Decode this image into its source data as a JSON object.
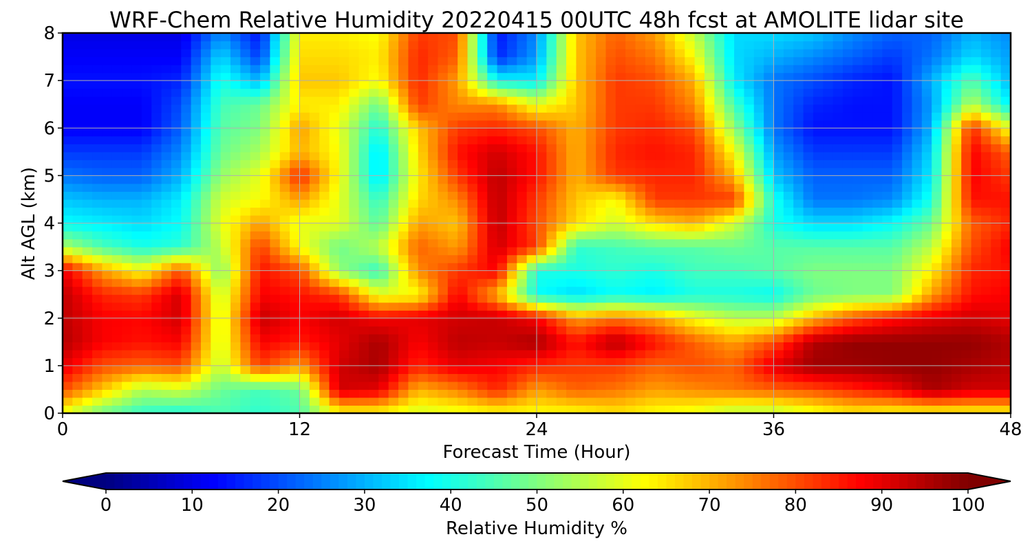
{
  "chart_data": {
    "type": "heatmap",
    "title": "WRF-Chem Relative Humidity 20220415 00UTC 48h fcst at AMOLITE lidar site",
    "xlabel": "Forecast Time (Hour)",
    "ylabel": "Alt AGL (km)",
    "xlim": [
      0,
      48
    ],
    "ylim": [
      0,
      8
    ],
    "x_ticks": [
      0,
      12,
      24,
      36,
      48
    ],
    "y_ticks": [
      0,
      1,
      2,
      3,
      4,
      5,
      6,
      7,
      8
    ],
    "grid": true,
    "colormap": "jet",
    "colorbar": {
      "label": "Relative Humidity %",
      "orientation": "horizontal",
      "placement": "bottom",
      "range": [
        0,
        100
      ],
      "ticks": [
        0,
        10,
        20,
        30,
        40,
        50,
        60,
        70,
        80,
        90,
        100
      ],
      "extend": "both"
    },
    "x": [
      0,
      2,
      4,
      6,
      8,
      10,
      12,
      14,
      16,
      18,
      20,
      22,
      24,
      26,
      28,
      30,
      32,
      34,
      36,
      38,
      40,
      42,
      44,
      46,
      48
    ],
    "y": [
      0,
      0.5,
      1,
      1.5,
      2,
      2.5,
      3,
      3.5,
      4,
      4.5,
      5,
      5.5,
      6,
      6.5,
      7,
      7.5,
      8
    ],
    "z": [
      [
        60,
        48,
        42,
        40,
        45,
        42,
        45,
        62,
        62,
        58,
        60,
        62,
        62,
        62,
        65,
        62,
        60,
        55,
        55,
        60,
        64,
        62,
        62,
        62,
        62
      ],
      [
        80,
        68,
        55,
        58,
        48,
        44,
        48,
        92,
        90,
        70,
        75,
        84,
        72,
        78,
        76,
        72,
        74,
        76,
        78,
        80,
        84,
        88,
        96,
        92,
        92
      ],
      [
        90,
        80,
        78,
        80,
        56,
        82,
        72,
        92,
        96,
        84,
        90,
        88,
        84,
        82,
        82,
        78,
        80,
        78,
        90,
        97,
        97,
        98,
        98,
        96,
        94
      ],
      [
        95,
        88,
        86,
        88,
        58,
        88,
        85,
        90,
        96,
        88,
        94,
        93,
        96,
        86,
        95,
        86,
        78,
        72,
        80,
        95,
        98,
        98,
        98,
        98,
        95
      ],
      [
        94,
        88,
        87,
        92,
        58,
        93,
        88,
        92,
        88,
        90,
        92,
        93,
        88,
        72,
        76,
        72,
        62,
        56,
        56,
        70,
        80,
        86,
        90,
        92,
        90
      ],
      [
        94,
        84,
        82,
        92,
        56,
        88,
        86,
        82,
        60,
        62,
        88,
        70,
        38,
        34,
        38,
        36,
        40,
        40,
        38,
        48,
        50,
        50,
        72,
        86,
        88
      ],
      [
        90,
        72,
        62,
        80,
        50,
        86,
        80,
        52,
        42,
        74,
        82,
        88,
        40,
        40,
        42,
        40,
        44,
        44,
        46,
        50,
        50,
        50,
        64,
        84,
        86
      ],
      [
        55,
        45,
        40,
        42,
        56,
        82,
        62,
        48,
        56,
        78,
        72,
        92,
        82,
        42,
        44,
        46,
        46,
        48,
        46,
        46,
        46,
        46,
        56,
        80,
        88
      ],
      [
        38,
        36,
        34,
        38,
        60,
        72,
        60,
        60,
        46,
        72,
        68,
        94,
        80,
        66,
        58,
        66,
        70,
        58,
        40,
        34,
        34,
        38,
        48,
        78,
        84
      ],
      [
        32,
        30,
        30,
        36,
        58,
        62,
        72,
        60,
        42,
        66,
        74,
        94,
        82,
        68,
        62,
        82,
        82,
        82,
        40,
        24,
        24,
        26,
        40,
        86,
        86
      ],
      [
        24,
        22,
        22,
        30,
        52,
        60,
        84,
        62,
        34,
        64,
        82,
        94,
        86,
        70,
        82,
        84,
        84,
        70,
        32,
        22,
        22,
        22,
        36,
        88,
        82
      ],
      [
        18,
        18,
        18,
        26,
        48,
        54,
        70,
        62,
        34,
        66,
        86,
        92,
        86,
        70,
        84,
        86,
        84,
        62,
        28,
        18,
        18,
        18,
        34,
        88,
        78
      ],
      [
        12,
        12,
        12,
        22,
        46,
        50,
        72,
        60,
        40,
        68,
        82,
        84,
        80,
        70,
        82,
        84,
        80,
        52,
        24,
        14,
        14,
        14,
        30,
        84,
        60
      ],
      [
        12,
        12,
        12,
        20,
        44,
        48,
        64,
        64,
        48,
        82,
        74,
        74,
        60,
        68,
        82,
        82,
        74,
        44,
        24,
        16,
        14,
        14,
        28,
        56,
        36
      ],
      [
        14,
        14,
        14,
        16,
        40,
        30,
        68,
        68,
        62,
        84,
        72,
        38,
        36,
        68,
        82,
        80,
        70,
        36,
        24,
        20,
        16,
        14,
        30,
        46,
        30
      ],
      [
        12,
        12,
        12,
        12,
        34,
        18,
        66,
        66,
        64,
        84,
        78,
        16,
        28,
        68,
        80,
        76,
        62,
        34,
        30,
        26,
        22,
        18,
        24,
        34,
        28
      ],
      [
        10,
        10,
        10,
        10,
        26,
        14,
        64,
        64,
        62,
        82,
        80,
        14,
        26,
        68,
        78,
        72,
        56,
        34,
        34,
        32,
        26,
        22,
        22,
        30,
        26
      ]
    ]
  }
}
